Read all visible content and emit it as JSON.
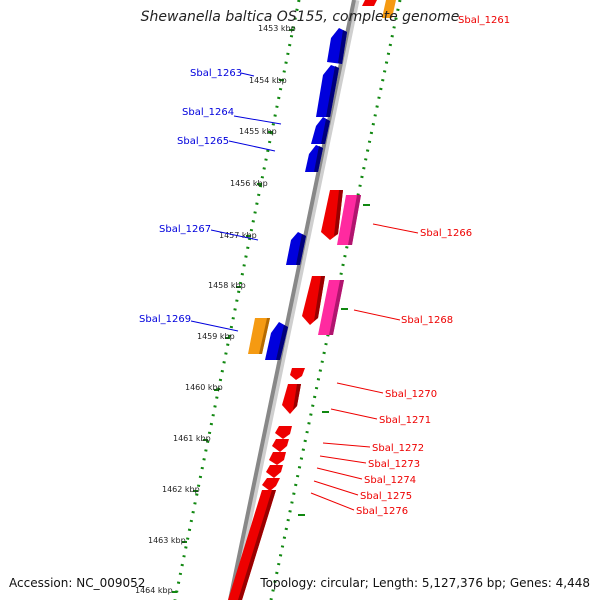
{
  "title": "Shewanella baltica OS155, complete genome",
  "footer": {
    "accession": "Accession: NC_009052",
    "stats": "Topology: circular; Length: 5,127,376 bp; Genes: 4,448"
  },
  "colors": {
    "plus_strand": "#0000dd",
    "minus_strand": "#ee0000",
    "pink_feature": "#ff2aa0",
    "orange_feature": "#f59a12",
    "backbone": "#888888",
    "tick": "#118811"
  },
  "scale_labels": [
    "1453 kbp",
    "1454 kbp",
    "1455 kbp",
    "1456 kbp",
    "1457 kbp",
    "1458 kbp",
    "1459 kbp",
    "1460 kbp",
    "1461 kbp",
    "1462 kbp",
    "1463 kbp",
    "1464 kbp"
  ],
  "left_labels": [
    "Sbal_1263",
    "Sbal_1264",
    "Sbal_1265",
    "Sbal_1267",
    "Sbal_1269"
  ],
  "right_labels": [
    "Sbal_1261",
    "Sbal_1266",
    "Sbal_1268",
    "Sbal_1270",
    "Sbal_1271",
    "Sbal_1272",
    "Sbal_1273",
    "Sbal_1274",
    "Sbal_1275",
    "Sbal_1276"
  ]
}
